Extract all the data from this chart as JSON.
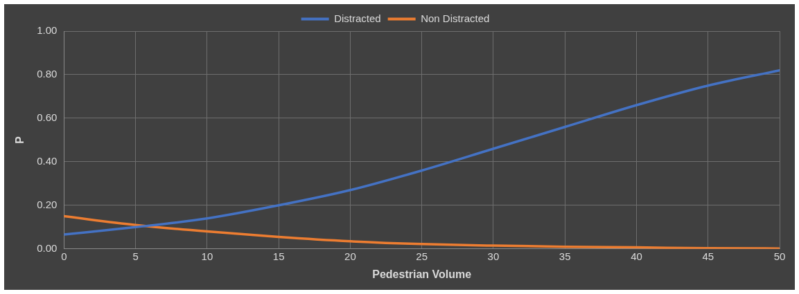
{
  "chart_data": {
    "type": "line",
    "xlabel": "Pedestrian Volume",
    "ylabel": "P",
    "x": [
      0,
      5,
      10,
      15,
      20,
      25,
      30,
      35,
      40,
      45,
      50
    ],
    "series": [
      {
        "name": "Distracted",
        "color": "#4472c4",
        "values": [
          0.066,
          0.1,
          0.14,
          0.2,
          0.27,
          0.36,
          0.46,
          0.56,
          0.66,
          0.75,
          0.82
        ]
      },
      {
        "name": "Non Distracted",
        "color": "#ed7d31",
        "values": [
          0.15,
          0.11,
          0.08,
          0.055,
          0.035,
          0.022,
          0.015,
          0.01,
          0.007,
          0.003,
          0.002
        ]
      }
    ],
    "xlim": [
      0,
      50
    ],
    "xticks": [
      0,
      5,
      10,
      15,
      20,
      25,
      30,
      35,
      40,
      45,
      50
    ],
    "ylim": [
      0,
      1
    ],
    "yticks": [
      {
        "value": 0,
        "label": "0.00"
      },
      {
        "value": 0.2,
        "label": "0.20"
      },
      {
        "value": 0.4,
        "label": "0.40"
      },
      {
        "value": 0.6,
        "label": "0.60"
      },
      {
        "value": 0.8,
        "label": "0.80"
      },
      {
        "value": 1,
        "label": "1.00"
      }
    ],
    "grid": true,
    "legend": "top",
    "marker": "none",
    "line_style": "solid"
  }
}
